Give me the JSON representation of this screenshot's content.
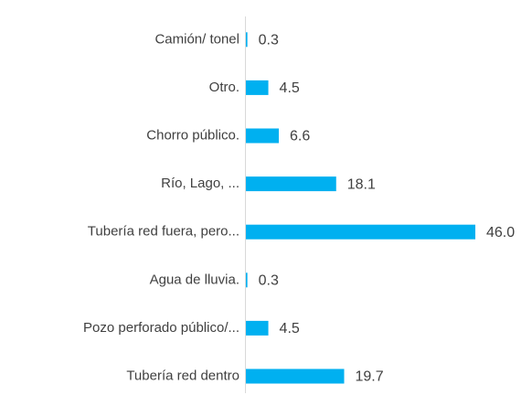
{
  "chart_data": {
    "type": "bar",
    "orientation": "horizontal",
    "categories": [
      "Camión/ tonel",
      "Otro.",
      "Chorro público.",
      "Río, Lago, ...",
      "Tubería red fuera, pero...",
      "Agua de lluvia.",
      "Pozo perforado público/...",
      "Tubería red dentro"
    ],
    "values": [
      0.3,
      4.5,
      6.6,
      18.1,
      46.0,
      0.3,
      4.5,
      19.7
    ],
    "value_labels": [
      "0.3",
      "4.5",
      "6.6",
      "18.1",
      "46.0",
      "0.3",
      "4.5",
      "19.7"
    ],
    "color": "#00b0f0"
  }
}
